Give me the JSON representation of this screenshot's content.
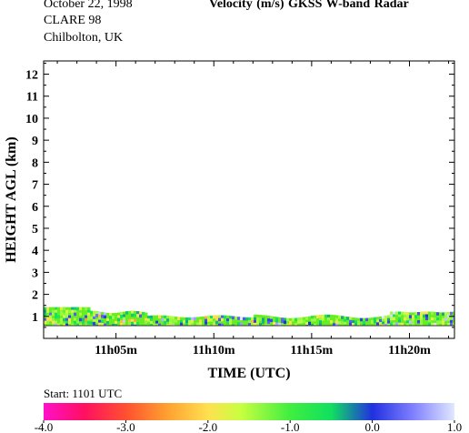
{
  "header": {
    "date": "October  22, 1998",
    "campaign": "CLARE 98",
    "location": "Chilbolton, UK",
    "title": "Velocity (m/s)    GKSS  W-band Radar"
  },
  "start_label": "Start: 1101 UTC",
  "colors": {
    "background": "#ffffff",
    "axis": "#000000",
    "echo_fill": "#66ee22"
  },
  "chart_data": {
    "type": "heatmap",
    "title": "Velocity (m/s)    GKSS  W-band Radar",
    "xlabel": "TIME (UTC)",
    "ylabel": "HEIGHT AGL (km)",
    "x_range_minutes_after_1100": [
      1.3,
      22.3
    ],
    "ylim": [
      0,
      12.6
    ],
    "x_ticks": [
      {
        "label": "11h05m",
        "minute": 5
      },
      {
        "label": "11h10m",
        "minute": 10
      },
      {
        "label": "11h15m",
        "minute": 15
      },
      {
        "label": "11h20m",
        "minute": 20
      }
    ],
    "y_ticks": [
      1,
      2,
      3,
      4,
      5,
      6,
      7,
      8,
      9,
      10,
      11,
      12
    ],
    "echo_layer_km": {
      "bottom": 0.58,
      "top_start": 1.42,
      "top_typical": 1.2,
      "top_min": 1.0
    },
    "colorbar": {
      "min": -4.0,
      "max": 1.0,
      "ticks": [
        {
          "value": -4.0,
          "label": "-4.0"
        },
        {
          "value": -3.0,
          "label": "-3.0"
        },
        {
          "value": -2.0,
          "label": "-2.0"
        },
        {
          "value": -1.0,
          "label": "-1.0"
        },
        {
          "value": 0.0,
          "label": "0.0"
        },
        {
          "value": 1.0,
          "label": "1.0"
        }
      ],
      "stops": [
        {
          "value": -4.0,
          "color": "#ff10c8"
        },
        {
          "value": -3.5,
          "color": "#ff1060"
        },
        {
          "value": -3.0,
          "color": "#ff5030"
        },
        {
          "value": -2.5,
          "color": "#ffa030"
        },
        {
          "value": -2.0,
          "color": "#ffe050"
        },
        {
          "value": -1.6,
          "color": "#c8ff40"
        },
        {
          "value": -1.0,
          "color": "#40ee40"
        },
        {
          "value": -0.5,
          "color": "#10e060"
        },
        {
          "value": 0.0,
          "color": "#2030e0"
        },
        {
          "value": 0.5,
          "color": "#8080ff"
        },
        {
          "value": 1.0,
          "color": "#e0e8ff"
        }
      ]
    }
  }
}
